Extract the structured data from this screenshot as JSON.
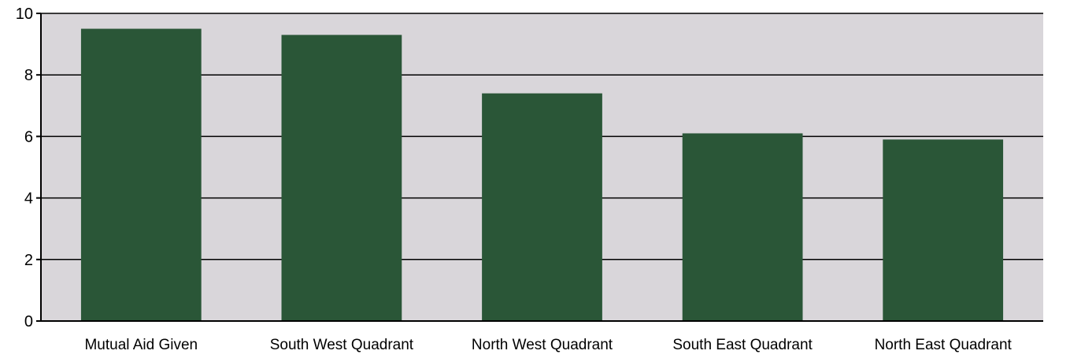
{
  "chart_data": {
    "type": "bar",
    "title": "",
    "xlabel": "",
    "ylabel": "",
    "categories": [
      "Mutual Aid Given",
      "South West Quadrant",
      "North West Quadrant",
      "South East Quadrant",
      "North East Quadrant"
    ],
    "values": [
      9.5,
      9.3,
      7.4,
      6.1,
      5.9
    ],
    "ylim": [
      0,
      10
    ],
    "yticks": [
      "0",
      "2",
      "4",
      "6",
      "8",
      "10"
    ],
    "grid": true,
    "legend": "none",
    "colors": {
      "bar": "#2a5637",
      "plot_background": "#d9d6da",
      "gridline": "#000000",
      "axis": "#000000"
    }
  }
}
